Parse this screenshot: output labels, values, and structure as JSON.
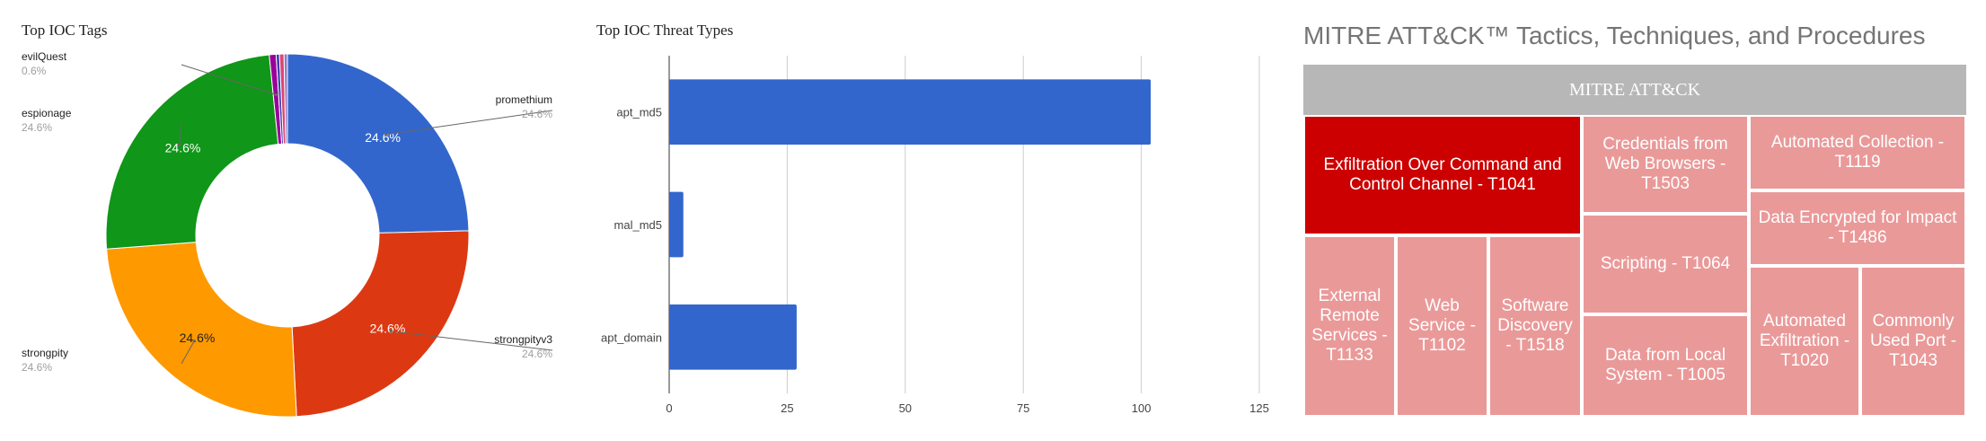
{
  "chart_data": [
    {
      "type": "pie",
      "title": "Top IOC Tags",
      "donut": true,
      "slices": [
        {
          "label": "promethium",
          "value": 24.6,
          "pct_label": "24.6%",
          "color": "#3366cc"
        },
        {
          "label": "strongpityv3",
          "value": 24.6,
          "pct_label": "24.6%",
          "color": "#dc3912"
        },
        {
          "label": "strongpity",
          "value": 24.6,
          "pct_label": "24.6%",
          "color": "#ff9900"
        },
        {
          "label": "espionage",
          "value": 24.6,
          "pct_label": "24.6%",
          "color": "#109618"
        },
        {
          "label": "evilQuest",
          "value": 0.6,
          "pct_label": "0.6%",
          "color": "#990099"
        },
        {
          "label": "",
          "value": 0.3,
          "pct_label": "",
          "color": "#3b3eac"
        },
        {
          "label": "",
          "value": 0.4,
          "pct_label": "",
          "color": "#dd4477"
        },
        {
          "label": "",
          "value": 0.3,
          "pct_label": "",
          "color": "#8e7cc3"
        }
      ]
    },
    {
      "type": "bar",
      "orientation": "horizontal",
      "title": "Top IOC Threat Types",
      "categories": [
        "apt_md5",
        "mal_md5",
        "apt_domain"
      ],
      "values": [
        102,
        3,
        27
      ],
      "xlim": [
        0,
        125
      ],
      "xticks": [
        "0",
        "25",
        "50",
        "75",
        "100",
        "125"
      ],
      "grid": true,
      "color": "#3366cc"
    },
    {
      "type": "treemap",
      "title": "MITRE ATT&CK™ Tactics, Techniques, and Procedures",
      "root": "MITRE ATT&CK",
      "header_color": "#b7b7b7",
      "highlight_color": "#cc0000",
      "cell_color": "#ea9999",
      "cells": [
        {
          "label": "Exfiltration Over Command and Control Channel - T1041",
          "highlight": true
        },
        {
          "label": "Credentials from Web Browsers - T1503",
          "highlight": false
        },
        {
          "label": "Automated Collection - T1119",
          "highlight": false
        },
        {
          "label": "Data Encrypted for Impact - T1486",
          "highlight": false
        },
        {
          "label": "Scripting - T1064",
          "highlight": false
        },
        {
          "label": "External Remote Services - T1133",
          "highlight": false
        },
        {
          "label": "Web Service - T1102",
          "highlight": false
        },
        {
          "label": "Software Discovery - T1518",
          "highlight": false
        },
        {
          "label": "Data from Local System - T1005",
          "highlight": false
        },
        {
          "label": "Automated Exfiltration - T1020",
          "highlight": false
        },
        {
          "label": "Commonly Used Port - T1043",
          "highlight": false
        }
      ]
    }
  ]
}
